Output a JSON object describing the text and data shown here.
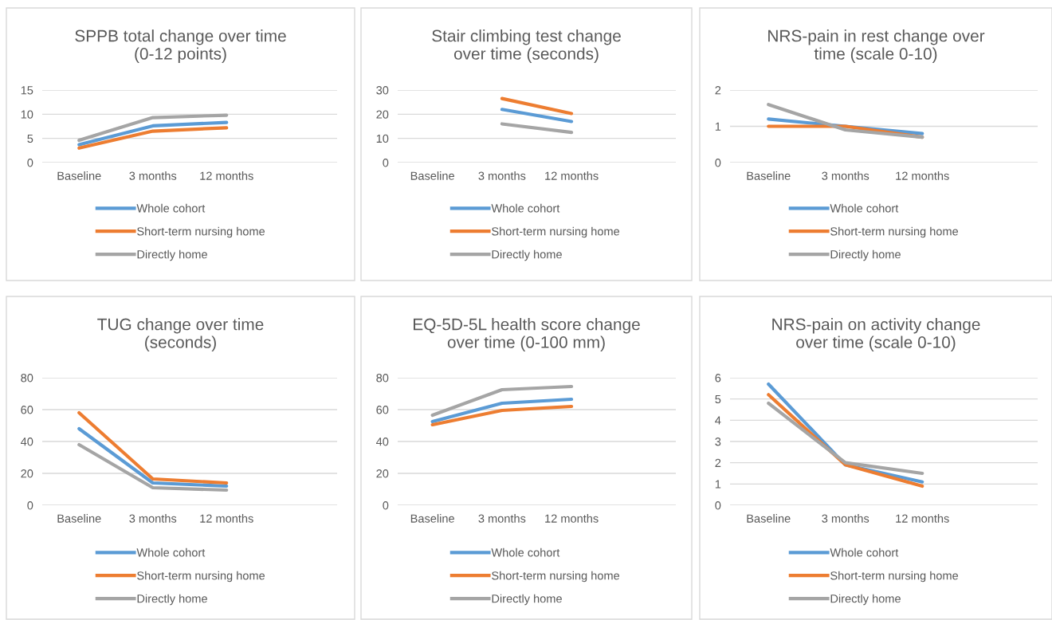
{
  "chart_data": [
    {
      "type": "line",
      "title": "SPPB total change over time (0-12 points)",
      "categories": [
        "Baseline",
        "3 months",
        "12 months",
        null
      ],
      "ylim": [
        0,
        15
      ],
      "yticks": [
        0,
        5,
        10,
        15
      ],
      "grid": "y",
      "legend": "bottom",
      "series": [
        {
          "name": "Whole cohort",
          "color": "#5b9bd5",
          "values": [
            3.7,
            7.6,
            8.3,
            null
          ]
        },
        {
          "name": "Short-term nursing home",
          "color": "#ed7d31",
          "values": [
            3.0,
            6.5,
            7.2,
            null
          ]
        },
        {
          "name": "Directly home",
          "color": "#a5a5a5",
          "values": [
            4.6,
            9.3,
            9.8,
            null
          ]
        }
      ]
    },
    {
      "type": "line",
      "title": "Stair climbing test change over time (seconds)",
      "categories": [
        "Baseline",
        "3 months",
        "12 months",
        null
      ],
      "ylim": [
        0,
        30
      ],
      "yticks": [
        0,
        10,
        20,
        30
      ],
      "grid": "y",
      "legend": "bottom",
      "series": [
        {
          "name": "Whole cohort",
          "color": "#5b9bd5",
          "values": [
            null,
            22,
            17,
            null
          ]
        },
        {
          "name": "Short-term nursing home",
          "color": "#ed7d31",
          "values": [
            null,
            26.5,
            20.3,
            null
          ]
        },
        {
          "name": "Directly home",
          "color": "#a5a5a5",
          "values": [
            null,
            16,
            12.5,
            null
          ]
        }
      ]
    },
    {
      "type": "line",
      "title": "NRS-pain in rest change over time (scale 0-10)",
      "categories": [
        "Baseline",
        "3 months",
        "12 months",
        null
      ],
      "ylim": [
        0,
        2
      ],
      "yticks": [
        0,
        1,
        2
      ],
      "grid": "y",
      "legend": "bottom",
      "series": [
        {
          "name": "Whole cohort",
          "color": "#5b9bd5",
          "values": [
            1.2,
            1.0,
            0.8,
            null
          ]
        },
        {
          "name": "Short-term nursing home",
          "color": "#ed7d31",
          "values": [
            1.0,
            1.0,
            0.7,
            null
          ]
        },
        {
          "name": "Directly home",
          "color": "#a5a5a5",
          "values": [
            1.6,
            0.9,
            0.7,
            null
          ]
        }
      ]
    },
    {
      "type": "line",
      "title": "TUG change over time (seconds)",
      "categories": [
        "Baseline",
        "3 months",
        "12 months",
        null
      ],
      "ylim": [
        0,
        80
      ],
      "yticks": [
        0,
        20,
        40,
        60,
        80
      ],
      "grid": "y",
      "legend": "bottom",
      "series": [
        {
          "name": "Whole cohort",
          "color": "#5b9bd5",
          "values": [
            48,
            14,
            12,
            null
          ]
        },
        {
          "name": "Short-term nursing home",
          "color": "#ed7d31",
          "values": [
            58,
            16.5,
            14,
            null
          ]
        },
        {
          "name": "Directly home",
          "color": "#a5a5a5",
          "values": [
            38,
            11,
            9.5,
            null
          ]
        }
      ]
    },
    {
      "type": "line",
      "title": "EQ-5D-5L health score change over time (0-100 mm)",
      "categories": [
        "Baseline",
        "3 months",
        "12 months",
        null
      ],
      "ylim": [
        0,
        80
      ],
      "yticks": [
        0,
        20,
        40,
        60,
        80
      ],
      "grid": "y",
      "legend": "bottom",
      "series": [
        {
          "name": "Whole cohort",
          "color": "#5b9bd5",
          "values": [
            52.5,
            64,
            66.5,
            null
          ]
        },
        {
          "name": "Short-term nursing home",
          "color": "#ed7d31",
          "values": [
            50.5,
            59.5,
            62,
            null
          ]
        },
        {
          "name": "Directly home",
          "color": "#a5a5a5",
          "values": [
            56.5,
            72.5,
            74.5,
            null
          ]
        }
      ]
    },
    {
      "type": "line",
      "title": "NRS-pain on activity change over time (scale 0-10)",
      "categories": [
        "Baseline",
        "3 months",
        "12 months",
        null
      ],
      "ylim": [
        0,
        6
      ],
      "yticks": [
        0,
        1,
        2,
        3,
        4,
        5,
        6
      ],
      "grid": "y",
      "legend": "bottom",
      "series": [
        {
          "name": "Whole cohort",
          "color": "#5b9bd5",
          "values": [
            5.7,
            1.9,
            1.1,
            null
          ]
        },
        {
          "name": "Short-term nursing home",
          "color": "#ed7d31",
          "values": [
            5.2,
            1.9,
            0.9,
            null
          ]
        },
        {
          "name": "Directly home",
          "color": "#a5a5a5",
          "values": [
            4.8,
            2.0,
            1.5,
            null
          ]
        }
      ]
    }
  ]
}
